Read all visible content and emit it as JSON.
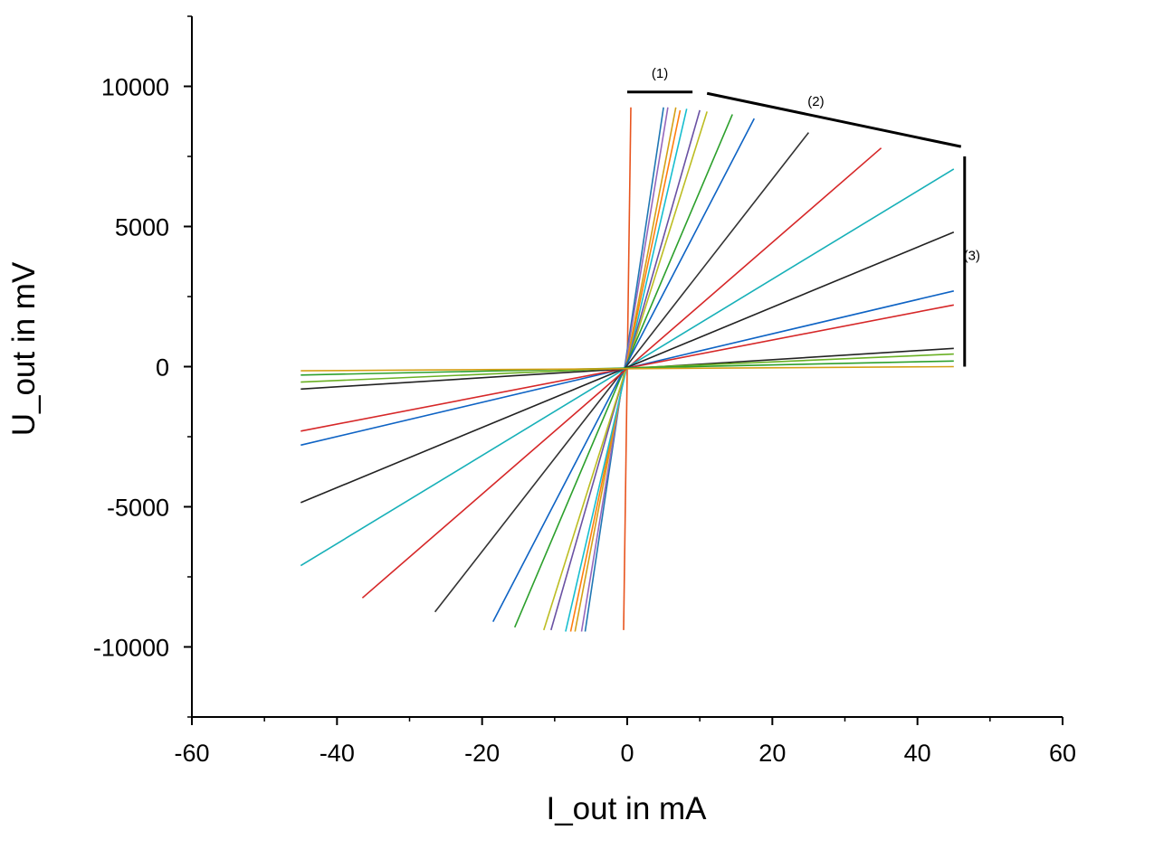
{
  "chart_data": {
    "type": "line",
    "xlabel": "I_out in mA",
    "ylabel": "U_out in mV",
    "xlim": [
      -60,
      60
    ],
    "ylim": [
      -12500,
      12500
    ],
    "x_ticks": [
      -60,
      -40,
      -20,
      0,
      20,
      40,
      60
    ],
    "x_tick_labels": [
      "-60",
      "-40",
      "-20",
      "0",
      "20",
      "40",
      "60"
    ],
    "y_ticks": [
      -10000,
      -5000,
      0,
      5000,
      10000
    ],
    "y_tick_labels": [
      "-10000",
      "-5000",
      "0",
      "5000",
      "10000"
    ],
    "grid": false,
    "series": [
      {
        "color": "#e8541e",
        "points": [
          [
            -0.5,
            -9400
          ],
          [
            0.5,
            9250
          ]
        ]
      },
      {
        "color": "#1f77b4",
        "points": [
          [
            -5.8,
            -9450
          ],
          [
            5.0,
            9250
          ]
        ]
      },
      {
        "color": "#9467bd",
        "points": [
          [
            -6.3,
            -9450
          ],
          [
            5.6,
            9250
          ]
        ]
      },
      {
        "color": "#d4a017",
        "points": [
          [
            -7.2,
            -9450
          ],
          [
            6.7,
            9250
          ]
        ]
      },
      {
        "color": "#ff7f0e",
        "points": [
          [
            -7.8,
            -9450
          ],
          [
            7.3,
            9150
          ]
        ]
      },
      {
        "color": "#17becf",
        "points": [
          [
            -8.5,
            -9450
          ],
          [
            8.2,
            9200
          ]
        ]
      },
      {
        "color": "#6a51a3",
        "points": [
          [
            -10.5,
            -9400
          ],
          [
            10.0,
            9150
          ]
        ]
      },
      {
        "color": "#bcbd22",
        "points": [
          [
            -11.5,
            -9400
          ],
          [
            11.0,
            9100
          ]
        ]
      },
      {
        "color": "#2ca02c",
        "points": [
          [
            -15.5,
            -9300
          ],
          [
            14.5,
            9000
          ]
        ]
      },
      {
        "color": "#0e63c4",
        "points": [
          [
            -18.5,
            -9100
          ],
          [
            17.5,
            8850
          ]
        ]
      },
      {
        "color": "#333333",
        "points": [
          [
            -26.5,
            -8750
          ],
          [
            25.0,
            8350
          ]
        ]
      },
      {
        "color": "#d62728",
        "points": [
          [
            -36.5,
            -8250
          ],
          [
            35.0,
            7800
          ]
        ]
      },
      {
        "color": "#17b0b8",
        "points": [
          [
            -45.0,
            -7100
          ],
          [
            45.0,
            7050
          ]
        ]
      },
      {
        "color": "#222222",
        "points": [
          [
            -45.0,
            -4850
          ],
          [
            45.0,
            4800
          ]
        ]
      },
      {
        "color": "#0e63c4",
        "points": [
          [
            -45.0,
            -2800
          ],
          [
            45.0,
            2700
          ]
        ]
      },
      {
        "color": "#d62728",
        "points": [
          [
            -45.0,
            -2300
          ],
          [
            45.0,
            2200
          ]
        ]
      },
      {
        "color": "#222222",
        "points": [
          [
            -45.0,
            -800
          ],
          [
            45.0,
            650
          ]
        ]
      },
      {
        "color": "#6ab023",
        "points": [
          [
            -45.0,
            -550
          ],
          [
            45.0,
            450
          ]
        ]
      },
      {
        "color": "#2ca02c",
        "points": [
          [
            -45.0,
            -300
          ],
          [
            45.0,
            200
          ]
        ]
      },
      {
        "color": "#d4a017",
        "points": [
          [
            -45.0,
            -150
          ],
          [
            45.0,
            0
          ]
        ]
      }
    ],
    "annotations": [
      {
        "label": "(1)",
        "bracket": [
          [
            0,
            9800
          ],
          [
            9,
            9800
          ]
        ],
        "label_at": [
          4.5,
          10300
        ]
      },
      {
        "label": "(2)",
        "bracket": [
          [
            11,
            9750
          ],
          [
            46,
            7850
          ]
        ],
        "label_at": [
          26,
          9300
        ]
      },
      {
        "label": "(3)",
        "bracket": [
          [
            46.5,
            7500
          ],
          [
            46.5,
            0
          ]
        ],
        "label_at": [
          47.5,
          3800
        ]
      }
    ]
  }
}
